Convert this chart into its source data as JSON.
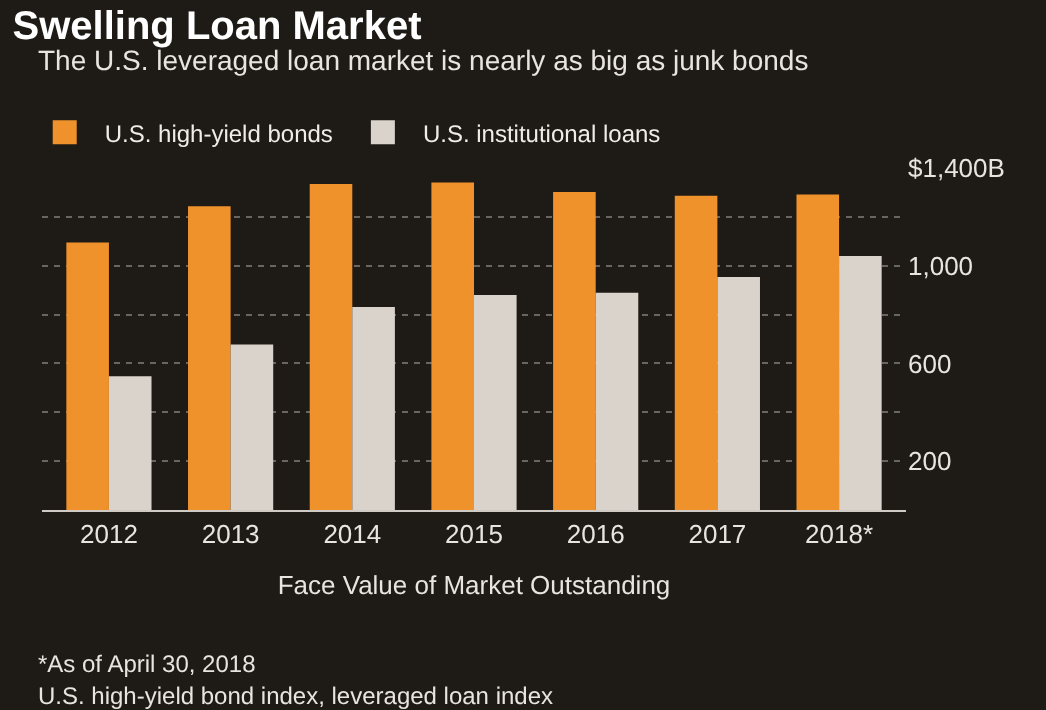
{
  "chart_data": {
    "type": "bar",
    "title": "Swelling Loan Market",
    "subtitle": "The U.S. leveraged loan market is nearly as big as junk bonds",
    "categories": [
      "2012",
      "2013",
      "2014",
      "2015",
      "2016",
      "2017",
      "2018*"
    ],
    "series": [
      {
        "name": "U.S. high-yield bonds",
        "color": "#f0922b",
        "values": [
          1095,
          1243,
          1335,
          1341,
          1302,
          1286,
          1292
        ]
      },
      {
        "name": "U.S. institutional loans",
        "color": "#d9d3cc",
        "values": [
          548,
          677,
          831,
          880,
          889,
          954,
          1040
        ]
      }
    ],
    "ylim": [
      0,
      1400
    ],
    "yticks": [
      {
        "value": 200,
        "label": "200"
      },
      {
        "value": 400,
        "label": null
      },
      {
        "value": 600,
        "label": "600"
      },
      {
        "value": 800,
        "label": null
      },
      {
        "value": 1000,
        "label": "1,000"
      },
      {
        "value": 1200,
        "label": null
      },
      {
        "value": 1400,
        "label": "$1,400B"
      }
    ],
    "xlabel": "Face Value of Market Outstanding",
    "annotations": [
      "*As of April 30, 2018",
      "U.S. high-yield bond index, leveraged loan index"
    ],
    "grid": "y",
    "legend": "top left"
  }
}
